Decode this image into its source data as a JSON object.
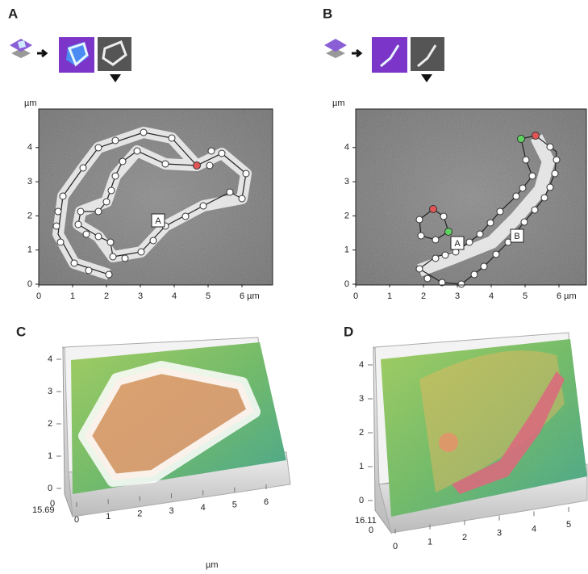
{
  "panels": [
    {
      "label": "A",
      "y_unit": "µm",
      "x_ticks": [
        "0",
        "1",
        "2",
        "3",
        "4",
        "5",
        "6 µm"
      ],
      "y_ticks": [
        "0",
        "1",
        "2",
        "3",
        "4"
      ],
      "annotations": [
        "A"
      ]
    },
    {
      "label": "B",
      "y_unit": "µm",
      "x_ticks": [
        "0",
        "1",
        "2",
        "3",
        "4",
        "5",
        "6 µm"
      ],
      "y_ticks": [
        "0",
        "1",
        "2",
        "3",
        "4"
      ],
      "annotations": [
        "A",
        "B"
      ]
    },
    {
      "label": "C",
      "z_ticks": [
        "0",
        "1",
        "2",
        "3",
        "4"
      ],
      "height_label": "15.69",
      "x_ticks": [
        "0",
        "1",
        "2",
        "3",
        "4",
        "5",
        "6"
      ],
      "x_unit": "µm"
    },
    {
      "label": "D",
      "z_ticks": [
        "0",
        "1",
        "2",
        "3",
        "4"
      ],
      "height_label": "16.11",
      "x_ticks": [
        "0",
        "1",
        "2",
        "3",
        "4",
        "5"
      ]
    }
  ]
}
